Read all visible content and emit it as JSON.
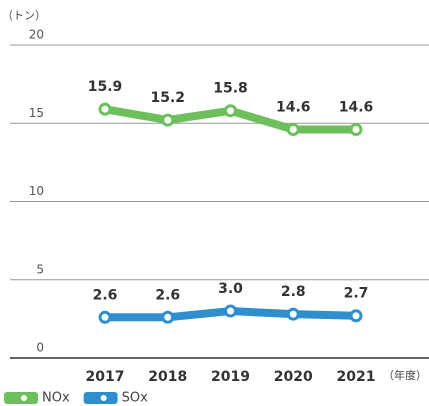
{
  "chart_data": {
    "type": "line",
    "y_label": "（トン）",
    "x_label": "（年度）",
    "categories": [
      "2017",
      "2018",
      "2019",
      "2020",
      "2021"
    ],
    "series": [
      {
        "name": "NOx",
        "color": "#6cbf5b",
        "values": [
          15.9,
          15.2,
          15.8,
          14.6,
          14.6
        ],
        "value_labels": [
          "15.9",
          "15.2",
          "15.8",
          "14.6",
          "14.6"
        ]
      },
      {
        "name": "SOx",
        "color": "#2e8fce",
        "values": [
          2.6,
          2.6,
          3.0,
          2.8,
          2.7
        ],
        "value_labels": [
          "2.6",
          "2.6",
          "3.0",
          "2.8",
          "2.7"
        ]
      }
    ],
    "ylim": [
      0,
      20
    ],
    "yticks": [
      0,
      5,
      10,
      15,
      20
    ],
    "grid": true,
    "legend": "bottom-left"
  }
}
